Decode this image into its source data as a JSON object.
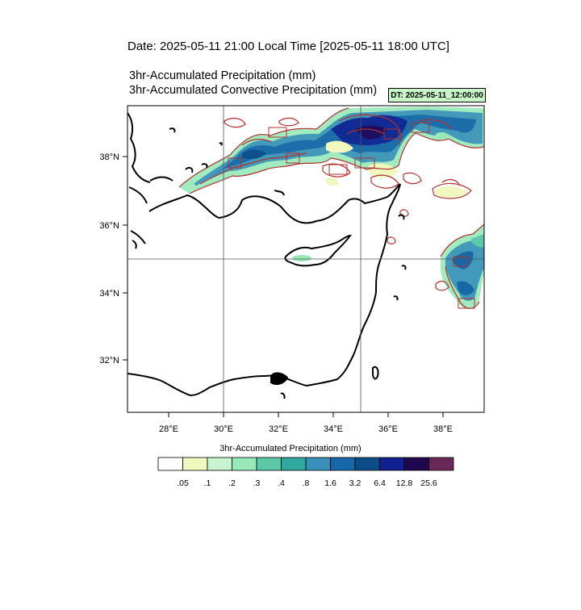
{
  "header": {
    "title": "Date: 2025-05-11  21:00 Local Time [2025-05-11  18:00 UTC]",
    "subtitle1": "3hr-Accumulated Precipitation   (mm)",
    "subtitle2": "3hr-Accumulated Convective Precipitation   (mm)",
    "dt_label": "DT: 2025-05-11_12:00:00"
  },
  "map": {
    "lon_range": [
      26.5,
      39.5
    ],
    "lat_range": [
      30.3,
      39.5
    ],
    "lon_ticks": [
      "28°E",
      "30°E",
      "32°E",
      "34°E",
      "36°E",
      "38°E"
    ],
    "lat_ticks": [
      "32°N",
      "34°N",
      "36°N",
      "38°N"
    ],
    "gridlines_lon": [
      30,
      35
    ],
    "gridlines_lat": [
      35
    ],
    "precip_colors": [
      "#ffffff",
      "#f0f8c0",
      "#c8f5d0",
      "#98e8b8",
      "#5cc8a8",
      "#30a8a0",
      "#3890b8",
      "#1868a8",
      "#0c4c88",
      "#102090",
      "#200850",
      "#6a2858"
    ],
    "contour_color": "#b03030"
  },
  "colorbar": {
    "title": "3hr-Accumulated Precipitation   (mm)",
    "labels": [
      ".05",
      ".1",
      ".2",
      ".3",
      ".4",
      ".8",
      "1.6",
      "3.2",
      "6.4",
      "12.8",
      "25.6"
    ]
  }
}
